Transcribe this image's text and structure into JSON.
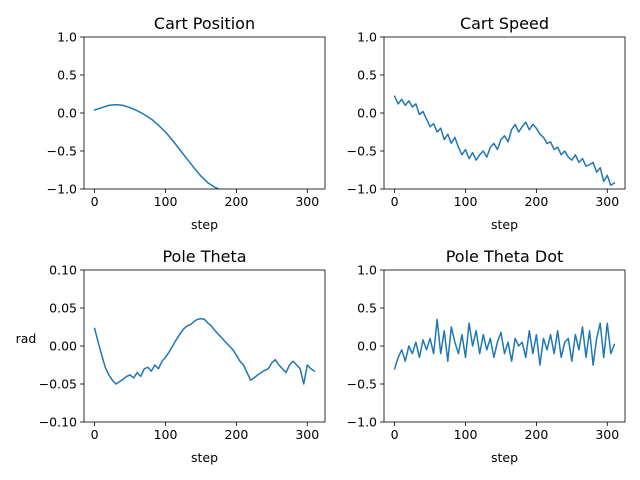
{
  "colors": {
    "series": "#1f77b4",
    "axes": "#000000",
    "background": "#ffffff"
  },
  "chart_data": [
    {
      "type": "line",
      "title": "Cart Position",
      "xlabel": "step",
      "ylabel": "",
      "xlim": [
        -15,
        325
      ],
      "ylim": [
        -1.0,
        1.0
      ],
      "xticks": [
        0,
        100,
        200,
        300
      ],
      "yticks": [
        "1.0",
        "0.5",
        "0.0",
        "−0.5",
        "−1.0"
      ],
      "ytick_values": [
        1.0,
        0.5,
        0.0,
        -0.5,
        -1.0
      ],
      "grid": false,
      "series": [
        {
          "x": [
            0,
            10,
            20,
            30,
            40,
            50,
            60,
            70,
            80,
            90,
            100,
            110,
            120,
            130,
            140,
            150,
            160,
            170,
            175
          ],
          "y": [
            0.04,
            0.07,
            0.1,
            0.11,
            0.1,
            0.07,
            0.03,
            -0.02,
            -0.08,
            -0.16,
            -0.25,
            -0.36,
            -0.48,
            -0.6,
            -0.72,
            -0.83,
            -0.92,
            -0.98,
            -1.0
          ]
        }
      ]
    },
    {
      "type": "line",
      "title": "Cart Speed",
      "xlabel": "step",
      "ylabel": "",
      "xlim": [
        -15,
        325
      ],
      "ylim": [
        -1.0,
        1.0
      ],
      "xticks": [
        0,
        100,
        200,
        300
      ],
      "yticks": [
        "1.0",
        "0.5",
        "0.0",
        "−0.5",
        "−1.0"
      ],
      "ytick_values": [
        1.0,
        0.5,
        0.0,
        -0.5,
        -1.0
      ],
      "grid": false,
      "series": [
        {
          "x": [
            0,
            5,
            10,
            15,
            20,
            25,
            30,
            35,
            40,
            45,
            50,
            55,
            60,
            65,
            70,
            75,
            80,
            85,
            90,
            95,
            100,
            105,
            110,
            115,
            120,
            125,
            130,
            135,
            140,
            145,
            150,
            155,
            160,
            165,
            170,
            175,
            180,
            185,
            190,
            195,
            200,
            205,
            210,
            215,
            220,
            225,
            230,
            235,
            240,
            245,
            250,
            255,
            260,
            265,
            270,
            275,
            280,
            285,
            290,
            295,
            300,
            305,
            310
          ],
          "y": [
            0.22,
            0.12,
            0.18,
            0.1,
            0.16,
            0.08,
            0.12,
            -0.02,
            0.02,
            -0.08,
            -0.18,
            -0.14,
            -0.25,
            -0.2,
            -0.35,
            -0.28,
            -0.4,
            -0.32,
            -0.45,
            -0.55,
            -0.48,
            -0.6,
            -0.52,
            -0.62,
            -0.55,
            -0.5,
            -0.58,
            -0.45,
            -0.4,
            -0.48,
            -0.35,
            -0.3,
            -0.38,
            -0.22,
            -0.15,
            -0.25,
            -0.18,
            -0.12,
            -0.22,
            -0.15,
            -0.2,
            -0.28,
            -0.32,
            -0.4,
            -0.38,
            -0.48,
            -0.45,
            -0.55,
            -0.5,
            -0.58,
            -0.62,
            -0.55,
            -0.65,
            -0.6,
            -0.7,
            -0.68,
            -0.65,
            -0.78,
            -0.72,
            -0.9,
            -0.82,
            -0.95,
            -0.92
          ]
        }
      ]
    },
    {
      "type": "line",
      "title": "Pole Theta",
      "xlabel": "step",
      "ylabel": "rad",
      "xlim": [
        -15,
        325
      ],
      "ylim": [
        -0.1,
        0.1
      ],
      "xticks": [
        0,
        100,
        200,
        300
      ],
      "yticks": [
        "0.10",
        "0.05",
        "0.00",
        "−0.05",
        "−0.10"
      ],
      "ytick_values": [
        0.1,
        0.05,
        0.0,
        -0.05,
        -0.1
      ],
      "grid": false,
      "series": [
        {
          "x": [
            0,
            5,
            10,
            15,
            20,
            25,
            30,
            35,
            40,
            45,
            50,
            55,
            60,
            65,
            70,
            75,
            80,
            85,
            90,
            95,
            100,
            105,
            110,
            115,
            120,
            125,
            130,
            135,
            140,
            145,
            150,
            155,
            160,
            165,
            170,
            175,
            180,
            185,
            190,
            195,
            200,
            205,
            210,
            215,
            220,
            225,
            230,
            235,
            240,
            245,
            250,
            255,
            260,
            265,
            270,
            275,
            280,
            285,
            290,
            295,
            300,
            305,
            310
          ],
          "y": [
            0.023,
            0.005,
            -0.012,
            -0.028,
            -0.038,
            -0.045,
            -0.05,
            -0.047,
            -0.044,
            -0.04,
            -0.038,
            -0.042,
            -0.035,
            -0.04,
            -0.03,
            -0.028,
            -0.033,
            -0.025,
            -0.03,
            -0.02,
            -0.015,
            -0.008,
            0.0,
            0.008,
            0.015,
            0.022,
            0.026,
            0.028,
            0.032,
            0.035,
            0.036,
            0.035,
            0.03,
            0.026,
            0.02,
            0.015,
            0.01,
            0.005,
            0.0,
            -0.005,
            -0.012,
            -0.02,
            -0.025,
            -0.035,
            -0.045,
            -0.042,
            -0.038,
            -0.035,
            -0.032,
            -0.03,
            -0.022,
            -0.018,
            -0.025,
            -0.03,
            -0.035,
            -0.025,
            -0.02,
            -0.025,
            -0.03,
            -0.05,
            -0.025,
            -0.03,
            -0.033
          ]
        }
      ]
    },
    {
      "type": "line",
      "title": "Pole Theta Dot",
      "xlabel": "step",
      "ylabel": "",
      "xlim": [
        -15,
        325
      ],
      "ylim": [
        -1.0,
        1.0
      ],
      "xticks": [
        0,
        100,
        200,
        300
      ],
      "yticks": [
        "1.0",
        "0.5",
        "0.0",
        "−0.5",
        "−1.0"
      ],
      "ytick_values": [
        1.0,
        0.5,
        0.0,
        -0.5,
        -1.0
      ],
      "grid": false,
      "series": [
        {
          "x": [
            0,
            5,
            10,
            15,
            20,
            25,
            30,
            35,
            40,
            45,
            50,
            55,
            60,
            65,
            70,
            75,
            80,
            85,
            90,
            95,
            100,
            105,
            110,
            115,
            120,
            125,
            130,
            135,
            140,
            145,
            150,
            155,
            160,
            165,
            170,
            175,
            180,
            185,
            190,
            195,
            200,
            205,
            210,
            215,
            220,
            225,
            230,
            235,
            240,
            245,
            250,
            255,
            260,
            265,
            270,
            275,
            280,
            285,
            290,
            295,
            300,
            305,
            310
          ],
          "y": [
            -0.3,
            -0.15,
            -0.05,
            -0.2,
            0.0,
            -0.1,
            0.05,
            -0.15,
            0.08,
            -0.05,
            0.1,
            -0.1,
            0.35,
            -0.1,
            0.2,
            -0.2,
            0.25,
            0.05,
            -0.1,
            0.15,
            -0.15,
            0.3,
            0.0,
            0.2,
            -0.1,
            0.15,
            -0.05,
            0.1,
            -0.15,
            0.05,
            0.18,
            -0.1,
            0.05,
            -0.2,
            0.1,
            0.0,
            0.05,
            -0.15,
            0.2,
            -0.1,
            0.15,
            -0.25,
            0.1,
            -0.05,
            0.15,
            -0.1,
            0.2,
            -0.15,
            0.05,
            0.1,
            -0.2,
            0.15,
            -0.05,
            0.25,
            -0.15,
            0.2,
            -0.25,
            0.1,
            0.3,
            -0.15,
            0.3,
            -0.1,
            0.02
          ]
        }
      ]
    }
  ]
}
